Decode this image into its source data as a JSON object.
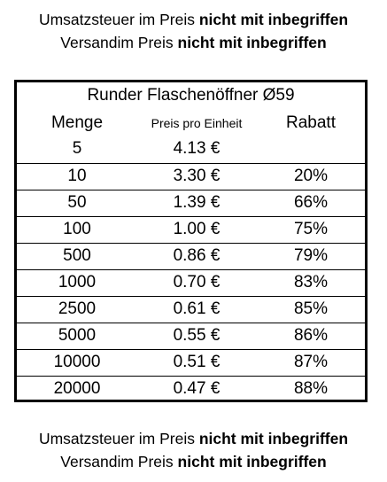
{
  "notice": {
    "line1_prefix": "Umsatzsteuer im Preis ",
    "line1_bold": "nicht mit inbegriffen",
    "line2_prefix": "Versandim Preis ",
    "line2_bold": "nicht mit inbegriffen"
  },
  "table": {
    "title": "Runder Flaschenöffner Ø59",
    "headers": {
      "quantity": "Menge",
      "unit_price": "Preis pro Einheit",
      "discount": "Rabatt"
    },
    "rows": [
      {
        "quantity": "5",
        "price": "4.13 €",
        "discount": ""
      },
      {
        "quantity": "10",
        "price": "3.30 €",
        "discount": "20%"
      },
      {
        "quantity": "50",
        "price": "1.39 €",
        "discount": "66%"
      },
      {
        "quantity": "100",
        "price": "1.00 €",
        "discount": "75%"
      },
      {
        "quantity": "500",
        "price": "0.86 €",
        "discount": "79%"
      },
      {
        "quantity": "1000",
        "price": "0.70 €",
        "discount": "83%"
      },
      {
        "quantity": "2500",
        "price": "0.61 €",
        "discount": "85%"
      },
      {
        "quantity": "5000",
        "price": "0.55 €",
        "discount": "86%"
      },
      {
        "quantity": "10000",
        "price": "0.51 €",
        "discount": "87%"
      },
      {
        "quantity": "20000",
        "price": "0.47 €",
        "discount": "88%"
      }
    ]
  }
}
